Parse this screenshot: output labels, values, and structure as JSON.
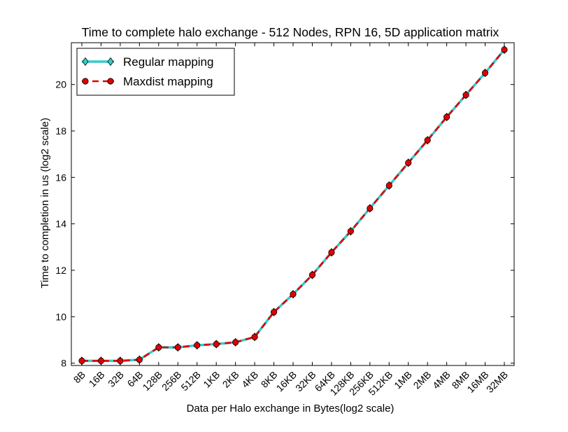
{
  "chart_data": {
    "type": "line",
    "title": "Time to complete halo exchange - 512 Nodes, RPN 16, 5D application matrix",
    "xlabel": "Data per Halo exchange in Bytes(log2 scale)",
    "ylabel": "Time to completion in us (log2 scale)",
    "categories": [
      "8B",
      "16B",
      "32B",
      "64B",
      "128B",
      "256B",
      "512B",
      "1KB",
      "2KB",
      "4KB",
      "8KB",
      "16KB",
      "32KB",
      "64KB",
      "128KB",
      "256KB",
      "512KB",
      "1MB",
      "2MB",
      "4MB",
      "8MB",
      "16MB",
      "32MB"
    ],
    "ylim": [
      7.9,
      21.8
    ],
    "yticks": [
      8,
      10,
      12,
      14,
      16,
      18,
      20
    ],
    "grid": false,
    "legend_position": "top-left",
    "series": [
      {
        "name": "Regular mapping",
        "color": "#33cccc",
        "marker": "diamond",
        "line_style": "solid",
        "values": [
          8.1,
          8.1,
          8.1,
          8.15,
          8.68,
          8.68,
          8.77,
          8.82,
          8.9,
          9.13,
          10.2,
          10.97,
          11.8,
          12.77,
          13.68,
          14.67,
          15.65,
          16.63,
          17.6,
          18.6,
          19.55,
          20.5,
          21.5
        ]
      },
      {
        "name": "Maxdist mapping",
        "color": "#e00000",
        "marker": "circle",
        "line_style": "dashed",
        "values": [
          8.1,
          8.1,
          8.1,
          8.15,
          8.68,
          8.68,
          8.77,
          8.82,
          8.9,
          9.13,
          10.2,
          10.97,
          11.8,
          12.77,
          13.68,
          14.67,
          15.65,
          16.63,
          17.6,
          18.6,
          19.55,
          20.5,
          21.5
        ]
      }
    ]
  }
}
